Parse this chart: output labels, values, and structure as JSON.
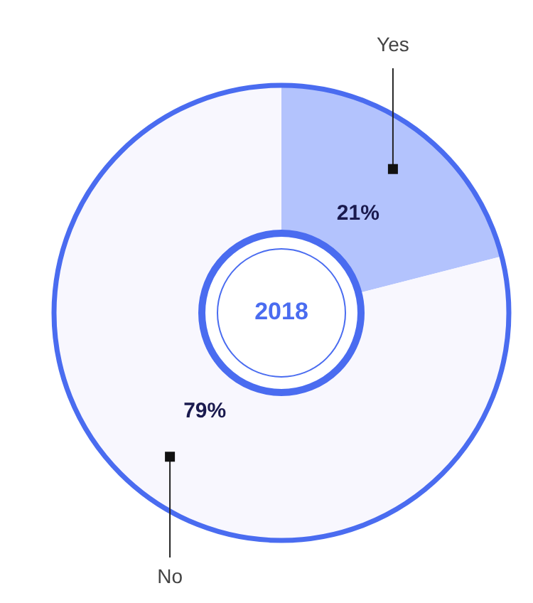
{
  "chart_data": {
    "type": "donut",
    "categories": [
      "Yes",
      "No"
    ],
    "values": [
      21,
      79
    ],
    "colors": [
      "#b3c3fd",
      "#f8f7fe"
    ],
    "value_labels": [
      "21%",
      "79%"
    ],
    "annotations": [
      "2018"
    ]
  }
}
